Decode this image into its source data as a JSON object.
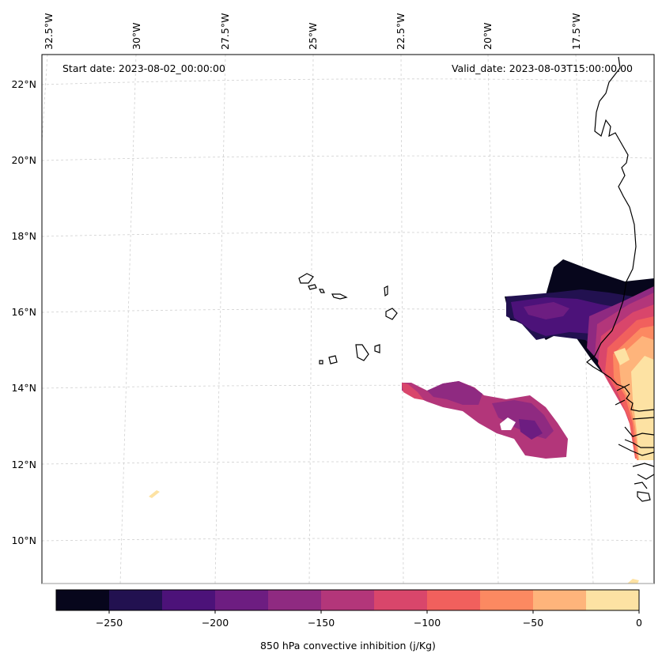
{
  "header": {
    "start_date": "Start date: 2023-08-02_00:00:00",
    "valid_date": "Valid_date: 2023-08-03T15:00:00.00"
  },
  "longitude_labels": [
    "32.5°W",
    "30°W",
    "27.5°W",
    "25°W",
    "22.5°W",
    "20°W",
    "17.5°W"
  ],
  "latitude_labels": [
    "22°N",
    "20°N",
    "18°N",
    "16°N",
    "14°N",
    "12°N",
    "10°N"
  ],
  "colorbar": {
    "label": "850 hPa convective inhibition (j/Kg)",
    "levels": [
      -275,
      -250,
      -225,
      -200,
      -175,
      -150,
      -125,
      -100,
      -75,
      -50,
      -25,
      0
    ],
    "tick_labels": [
      "−250",
      "−200",
      "−150",
      "−100",
      "−50",
      "0"
    ],
    "colors": [
      "#07061c",
      "#221150",
      "#4c1279",
      "#6d1d81",
      "#8f2a81",
      "#b3367a",
      "#d9466b",
      "#f1605d",
      "#fc8961",
      "#feb47b",
      "#fde2a3"
    ],
    "colormap": "magma"
  },
  "legend_icons": {
    "coastline": "coastline-outline",
    "gridline": "dashed-graticule"
  }
}
